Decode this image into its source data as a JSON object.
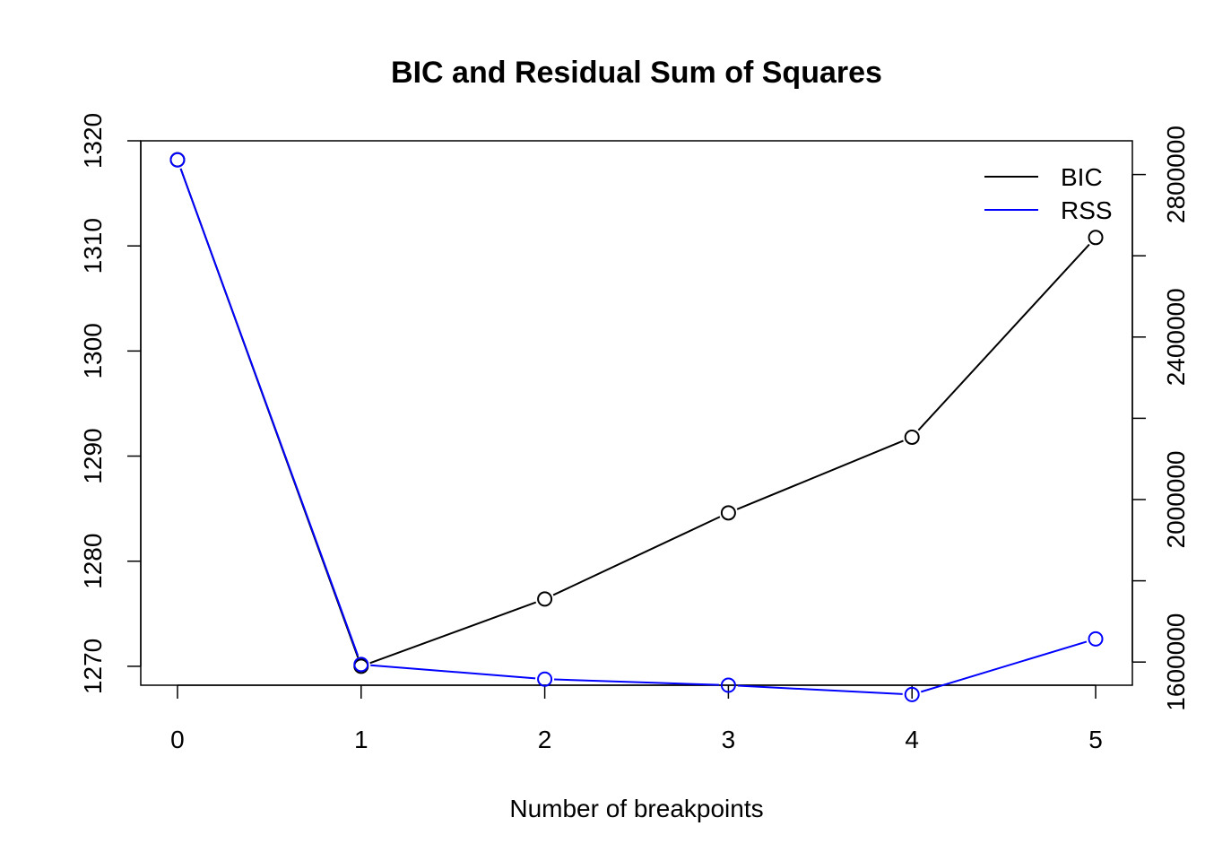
{
  "chart_data": {
    "type": "line",
    "title": "BIC and Residual Sum of Squares",
    "xlabel": "Number of breakpoints",
    "x": [
      0,
      1,
      2,
      3,
      4,
      5
    ],
    "xlim": [
      -0.2,
      5.2
    ],
    "series": [
      {
        "name": "BIC",
        "color": "#000000",
        "axis": "left",
        "values": [
          1318.2,
          1270.0,
          1276.4,
          1284.6,
          1291.8,
          1310.8
        ]
      },
      {
        "name": "RSS",
        "color": "#0000ff",
        "axis": "right",
        "values": [
          2836000,
          1594000,
          1558000,
          1543000,
          1520000,
          1657000
        ]
      }
    ],
    "y_left": {
      "ticks": [
        1270,
        1280,
        1290,
        1300,
        1310,
        1320
      ],
      "tick_labels": [
        "1270",
        "1280",
        "1290",
        "1300",
        "1310",
        "1320"
      ],
      "range": [
        1268.2,
        1320.0
      ]
    },
    "y_right": {
      "ticks": [
        1600000,
        1800000,
        2000000,
        2200000,
        2400000,
        2600000,
        2800000
      ],
      "tick_labels": [
        "1600000",
        "",
        "2000000",
        "",
        "2400000",
        "",
        "2800000"
      ],
      "range": [
        1543000,
        2883000
      ]
    },
    "x_tick_labels": [
      "0",
      "1",
      "2",
      "3",
      "4",
      "5"
    ],
    "legend": {
      "position": "top-right",
      "entries": [
        "BIC",
        "RSS"
      ]
    },
    "grid": false
  }
}
